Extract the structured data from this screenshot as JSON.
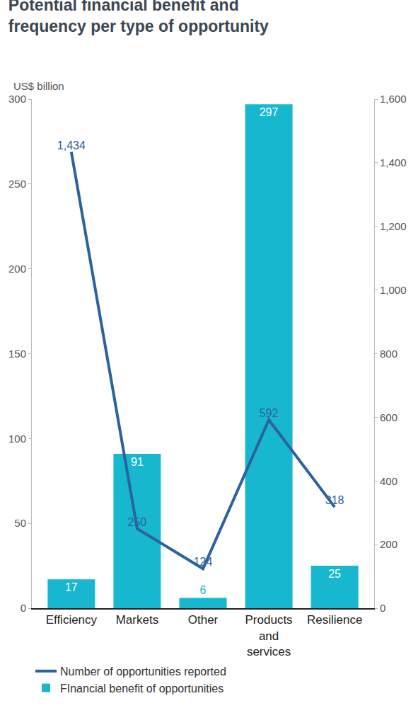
{
  "chart_data": {
    "type": "bar",
    "title": "Potential financial benefit and frequency per type of opportunity",
    "y_label": "US$ billion",
    "categories": [
      "Efficiency",
      "Markets",
      "Other",
      "Products and services",
      "Resilience"
    ],
    "series": [
      {
        "name": "Number of opportunities reported",
        "type": "line",
        "axis": "y2",
        "color": "#2b62a0",
        "values": [
          1434,
          250,
          124,
          592,
          318
        ],
        "value_labels": [
          "1,434",
          "250",
          "124",
          "592",
          "318"
        ]
      },
      {
        "name": "FInancial benefit of opportunities",
        "type": "bar",
        "color": "#17b8cf",
        "values": [
          17,
          91,
          6,
          297,
          25
        ]
      }
    ],
    "ylim": [
      0,
      300
    ],
    "yticks": [
      0,
      50,
      100,
      150,
      200,
      250,
      300
    ],
    "y2lim": [
      0,
      1600
    ],
    "y2ticks": [
      0,
      200,
      400,
      600,
      800,
      {
        "value": 1000,
        "label": "1,000"
      },
      {
        "value": 1200,
        "label": "1,200"
      },
      {
        "value": 1400,
        "label": "1,400"
      },
      {
        "value": 1600,
        "label": "1,600"
      }
    ],
    "data_labels": true,
    "grid": false,
    "legend": "bottom"
  }
}
